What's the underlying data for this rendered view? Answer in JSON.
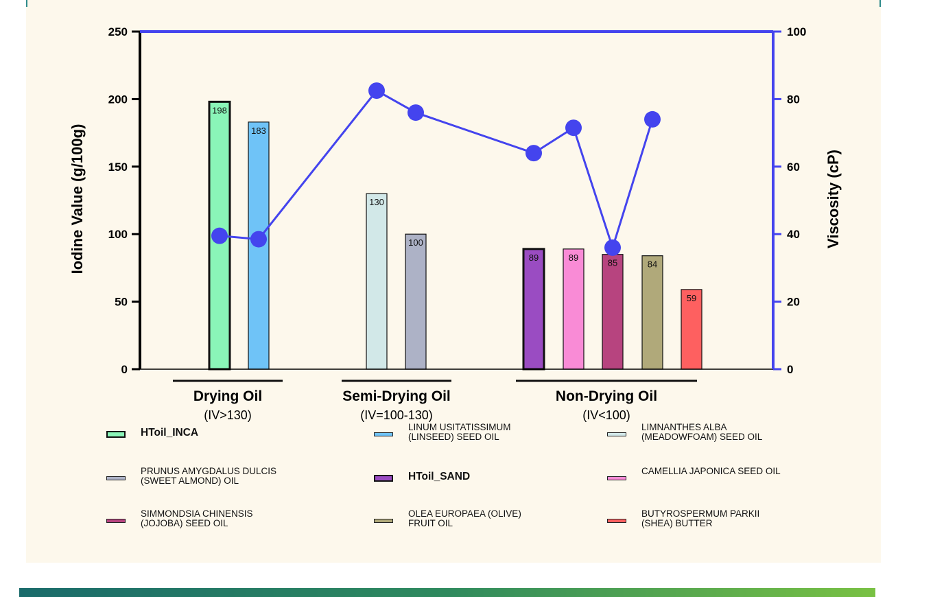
{
  "chart_data": {
    "type": "bar",
    "title": "",
    "ylabel": "Iodine Value (g/100g)",
    "y2label": "Viscosity (cP)",
    "ylim": [
      0,
      250
    ],
    "y2lim": [
      0,
      100
    ],
    "yticks": [
      "0",
      "50",
      "100",
      "150",
      "200",
      "250"
    ],
    "y2ticks": [
      "0",
      "20",
      "40",
      "60",
      "80",
      "100"
    ],
    "grid": false,
    "groups": [
      {
        "name": "Drying Oil",
        "subtitle": "(IV>130)"
      },
      {
        "name": "Semi-Drying Oil",
        "subtitle": "(IV=100-130)"
      },
      {
        "name": "Non-Drying Oil",
        "subtitle": "(IV<100)"
      }
    ],
    "bars": [
      {
        "name": "HToil_INCA",
        "group": 0,
        "iodine": 198,
        "label": "198",
        "viscosity": 39.5,
        "color": "#8af5b8",
        "bold": true
      },
      {
        "name": "LINUM USITATISSIMUM\n(LINSEED) SEED OIL",
        "group": 0,
        "iodine": 183,
        "label": "183",
        "viscosity": 38.5,
        "color": "#6fc3f7",
        "bold": false
      },
      {
        "name": "LIMNANTHES ALBA\n(MEADOWFOAM) SEED OIL",
        "group": 1,
        "iodine": 130,
        "label": "130",
        "viscosity": 82.5,
        "color": "#d2e8e8",
        "bold": false
      },
      {
        "name": "PRUNUS AMYGDALUS DULCIS\n(SWEET ALMOND) OIL",
        "group": 1,
        "iodine": 100,
        "label": "100",
        "viscosity": 76,
        "color": "#adb2c6",
        "bold": false
      },
      {
        "name": "HToil_SAND",
        "group": 2,
        "iodine": 89,
        "label": "89",
        "viscosity": 64,
        "color": "#9a4cc2",
        "bold": true
      },
      {
        "name": "CAMELLIA JAPONICA SEED OIL",
        "group": 2,
        "iodine": 89,
        "label": "89",
        "viscosity": 71.5,
        "color": "#f98bd6",
        "bold": false
      },
      {
        "name": "SIMMONDSIA CHINENSIS\n(JOJOBA) SEED OIL",
        "group": 2,
        "iodine": 85,
        "label": "85",
        "viscosity": 36,
        "color": "#b7447f",
        "bold": false
      },
      {
        "name": "OLEA EUROPAEA (OLIVE)\nFRUIT OIL",
        "group": 2,
        "iodine": 84,
        "label": "84",
        "viscosity": 74,
        "color": "#b0a97a",
        "bold": false
      },
      {
        "name": "BUTYROSPERMUM PARKII\n(SHEA) BUTTER",
        "group": 2,
        "iodine": 59,
        "label": "59",
        "viscosity": null,
        "color": "#fe6060",
        "bold": false
      }
    ],
    "line_color": "#4444ee",
    "legend_placement": "bottom",
    "legend_order": [
      0,
      1,
      2,
      3,
      4,
      5,
      6,
      7,
      8
    ]
  }
}
